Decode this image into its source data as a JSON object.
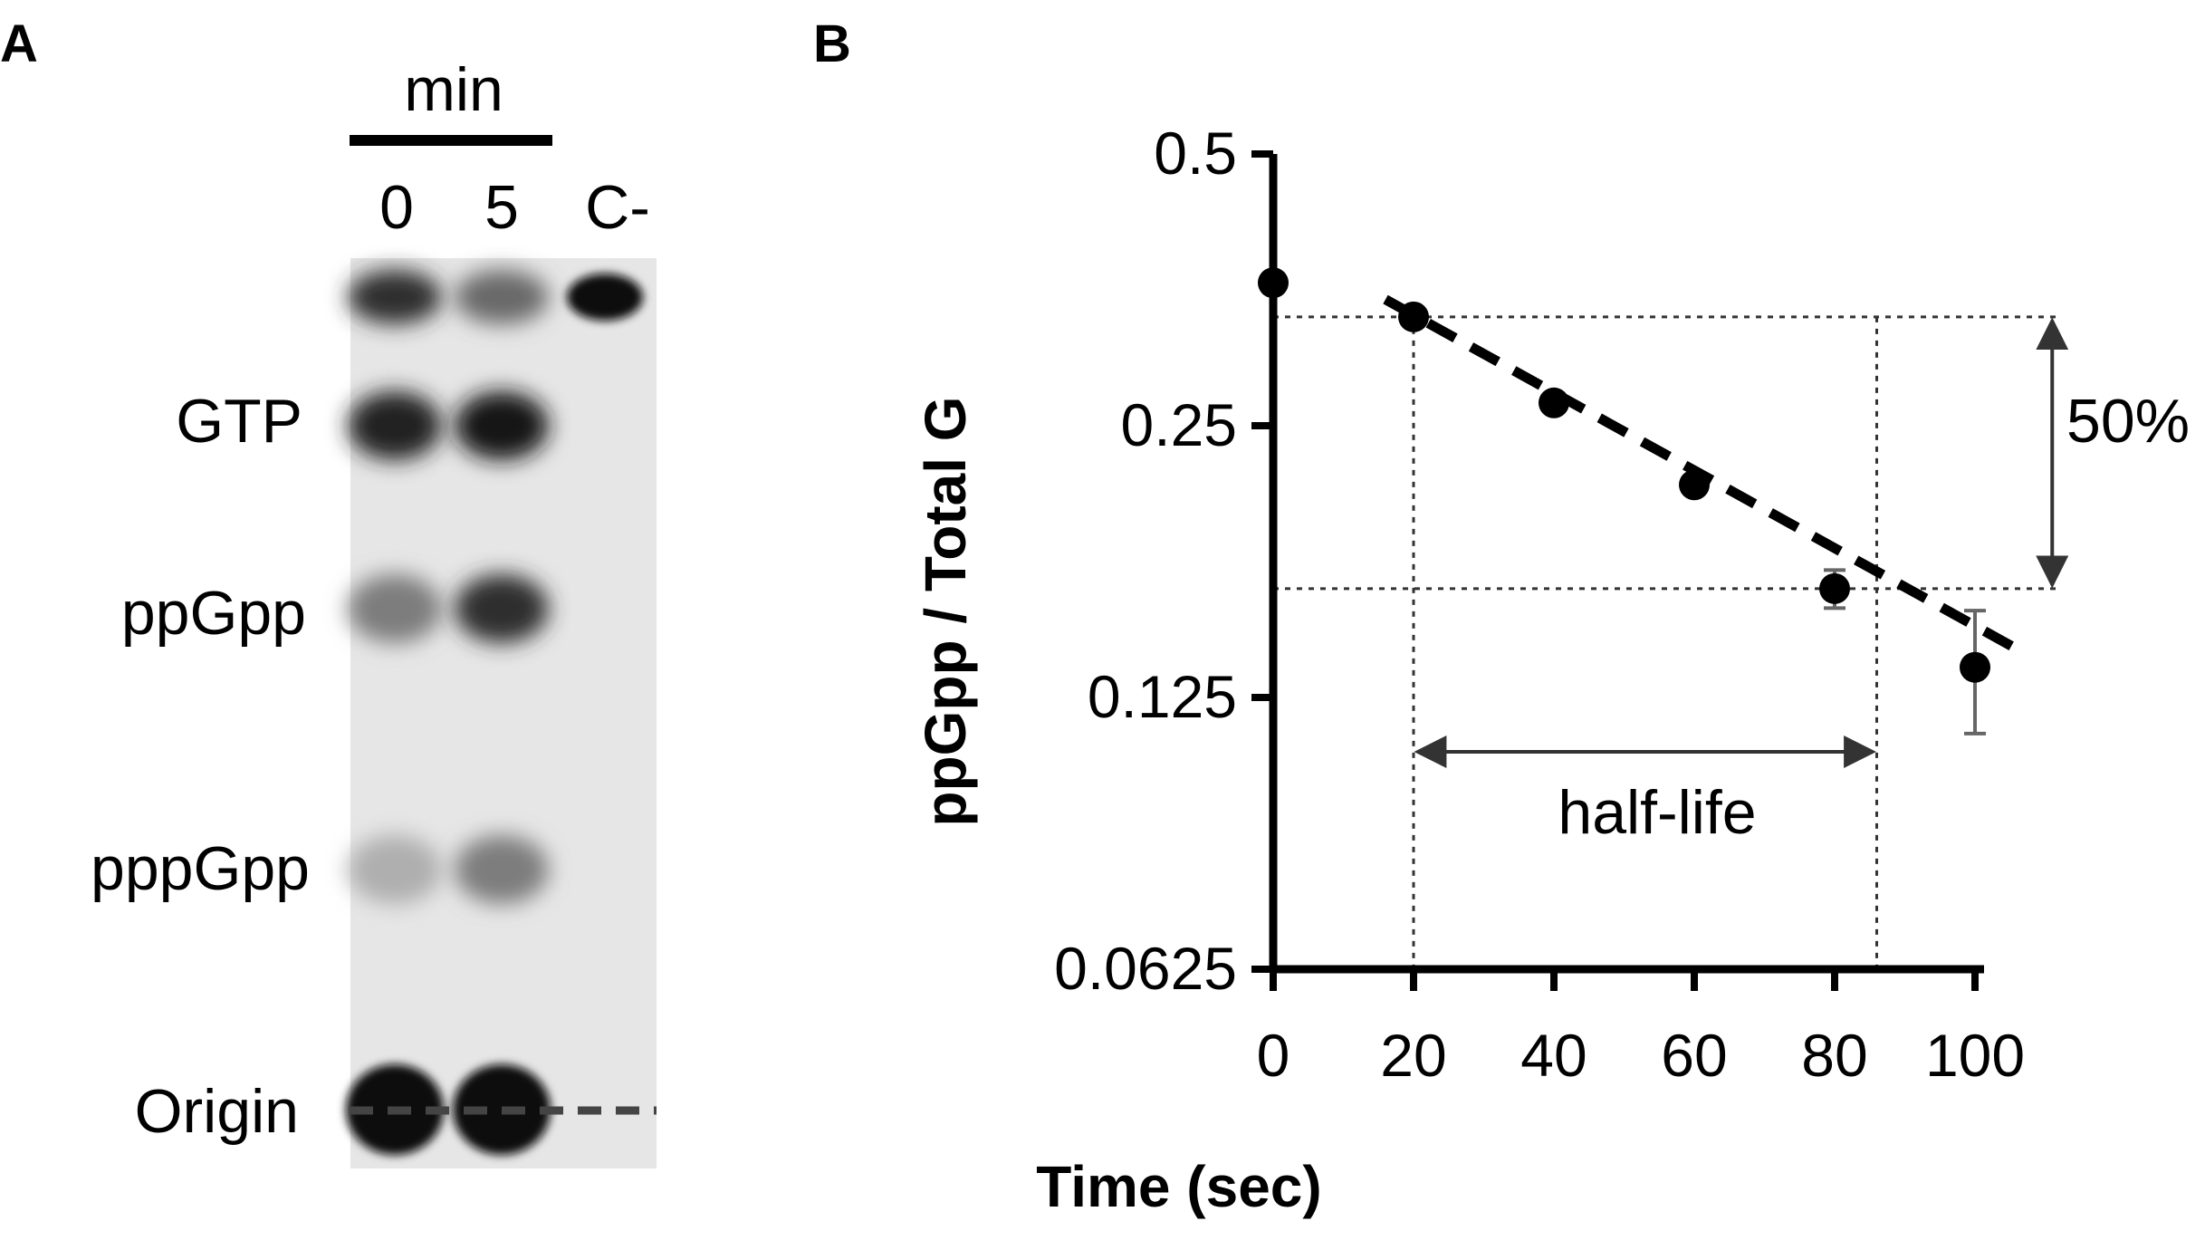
{
  "panel_a": {
    "label": "A",
    "header": "min",
    "lanes": [
      "0",
      "5",
      "C-"
    ],
    "spots": [
      "GTP",
      "ppGpp",
      "pppGpp",
      "Origin"
    ],
    "spot_intensity": {
      "top": {
        "0": 0.85,
        "5": 0.55,
        "C-": 1.0
      },
      "GTP": {
        "0": 0.9,
        "5": 0.95,
        "C-": 0
      },
      "ppGpp": {
        "0": 0.45,
        "5": 0.85,
        "C-": 0
      },
      "pppGpp": {
        "0": 0.2,
        "5": 0.45,
        "C-": 0
      },
      "Origin": {
        "0": 1.0,
        "5": 1.0,
        "C-": 0
      }
    }
  },
  "panel_b": {
    "label": "B",
    "annotation_percent": "50%",
    "annotation_halflife": "half-life"
  },
  "chart_data": {
    "type": "scatter",
    "xlabel": "Time (sec)",
    "ylabel": "ppGpp / Total G",
    "x_ticks": [
      0,
      20,
      40,
      60,
      80,
      100
    ],
    "y_ticks": [
      {
        "value": 0.0625,
        "label": "0.0625"
      },
      {
        "value": 0.125,
        "label": "0.125"
      },
      {
        "value": 0.25,
        "label": "0.25"
      },
      {
        "value": 0.5,
        "label": "0.5"
      }
    ],
    "yscale": "log2",
    "xlim": [
      0,
      100
    ],
    "ylim": [
      0.0625,
      0.5
    ],
    "grid": false,
    "series": [
      {
        "x": [
          0,
          20,
          40,
          60,
          80,
          100
        ],
        "y": [
          0.36,
          0.33,
          0.265,
          0.215,
          0.165,
          0.135
        ],
        "err": [
          0,
          0,
          0,
          0,
          0.008,
          0.021
        ]
      }
    ],
    "fit_line": {
      "style": "dashed",
      "x": [
        16,
        107
      ],
      "y": [
        0.345,
        0.14
      ]
    },
    "half_life_guides": {
      "y_top": 0.33,
      "y_bottom": 0.165,
      "x_start": 20,
      "x_end": 86
    }
  }
}
